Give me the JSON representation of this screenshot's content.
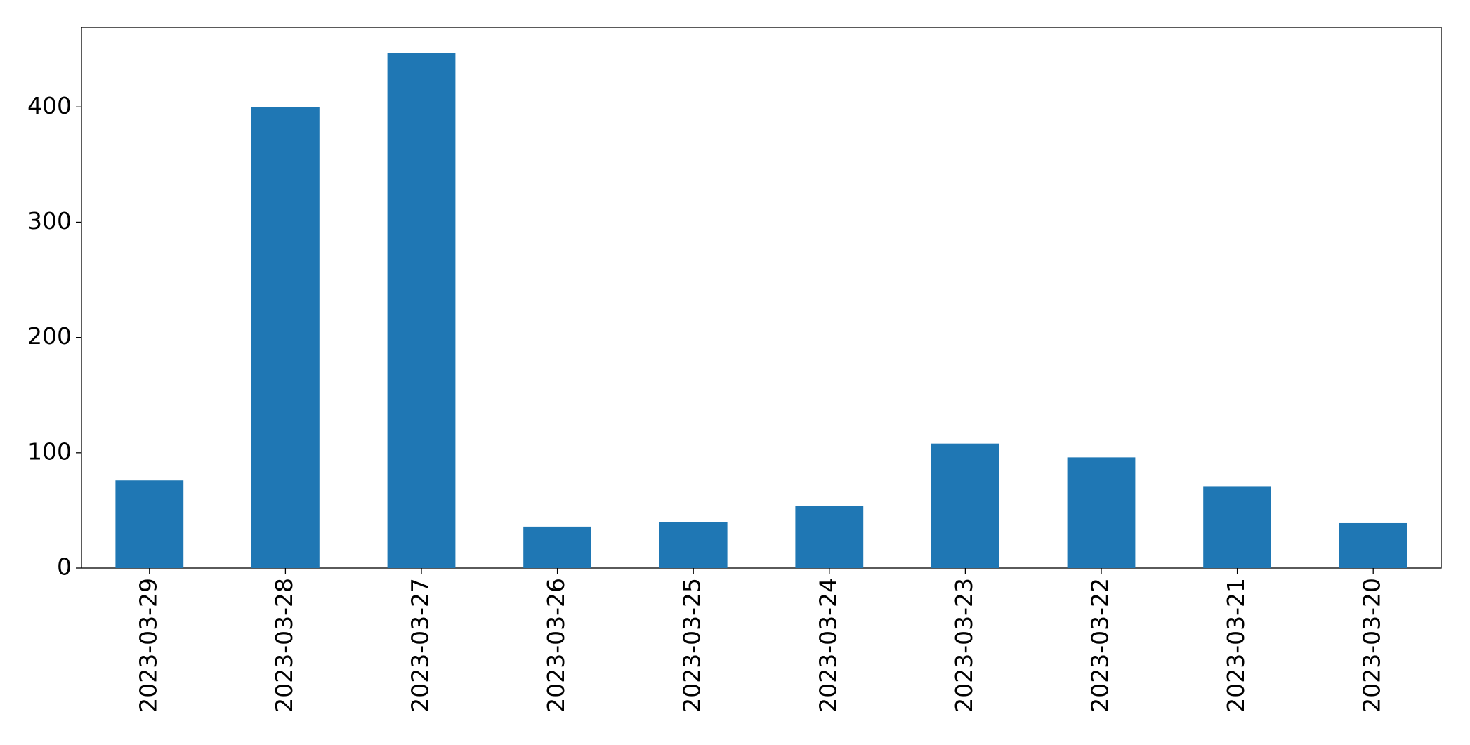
{
  "chart_data": {
    "type": "bar",
    "categories": [
      "2023-03-29",
      "2023-03-28",
      "2023-03-27",
      "2023-03-26",
      "2023-03-25",
      "2023-03-24",
      "2023-03-23",
      "2023-03-22",
      "2023-03-21",
      "2023-03-20"
    ],
    "values": [
      76,
      400,
      447,
      36,
      40,
      54,
      108,
      96,
      71,
      39
    ],
    "color": "#1f77b4",
    "ylim": [
      0,
      469
    ],
    "yticks": [
      0,
      100,
      200,
      300,
      400
    ],
    "grid": false
  }
}
